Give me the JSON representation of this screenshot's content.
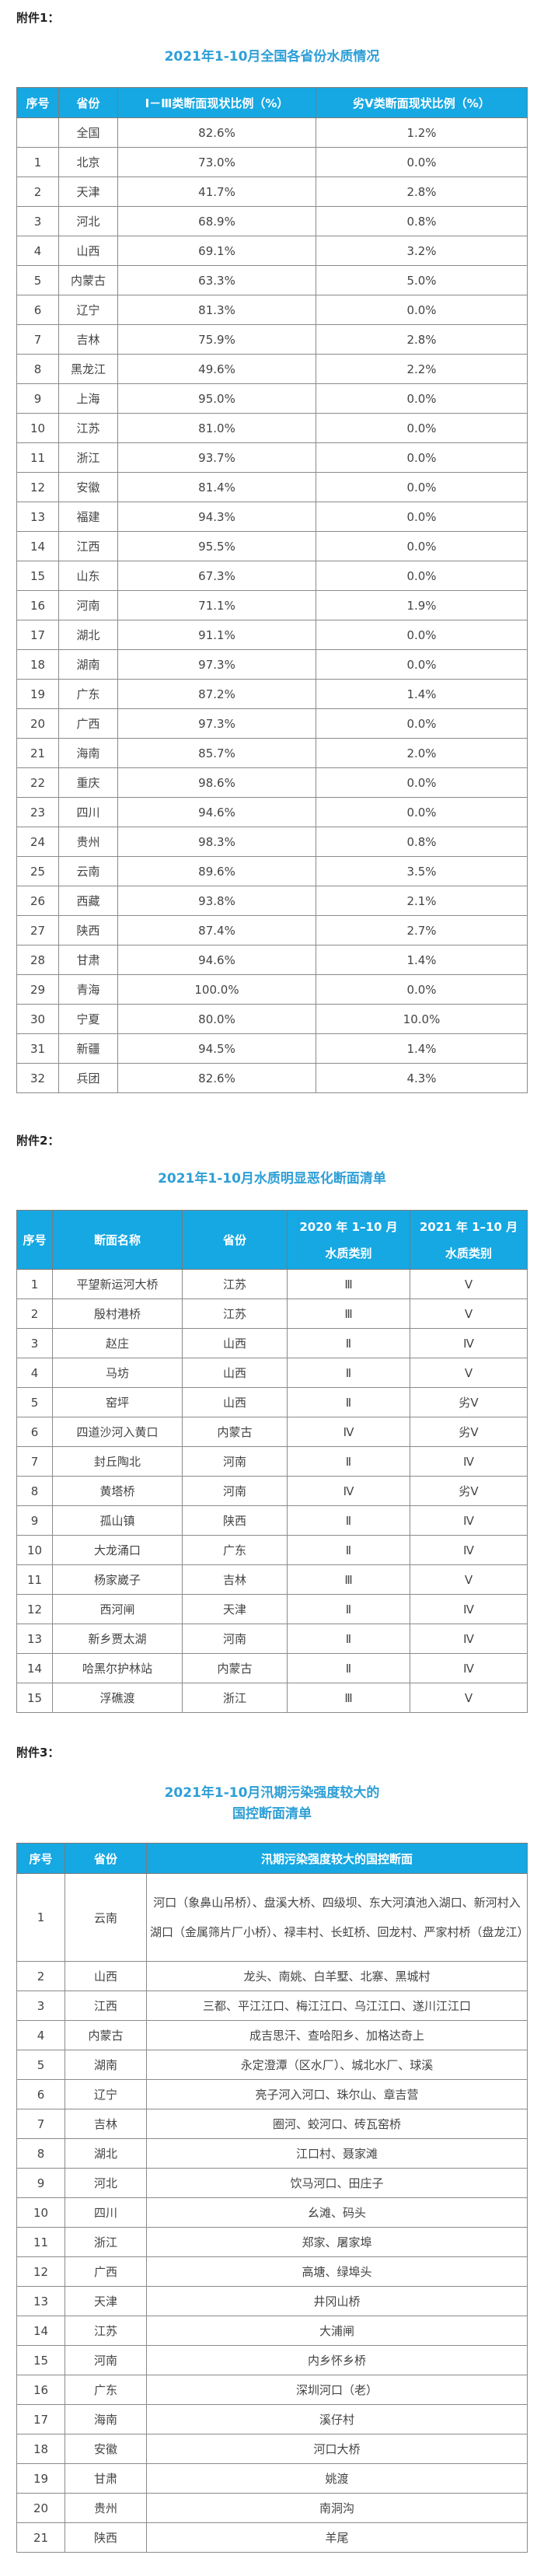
{
  "section1": {
    "label": "附件1：",
    "title": "2021年1-10月全国各省份水质情况",
    "headers": [
      "序号",
      "省份",
      "Ⅰ－Ⅲ类断面现状比例（%）",
      "劣Ⅴ类断面现状比例（%）"
    ],
    "rows": [
      [
        "",
        "全国",
        "82.6%",
        "1.2%"
      ],
      [
        "1",
        "北京",
        "73.0%",
        "0.0%"
      ],
      [
        "2",
        "天津",
        "41.7%",
        "2.8%"
      ],
      [
        "3",
        "河北",
        "68.9%",
        "0.8%"
      ],
      [
        "4",
        "山西",
        "69.1%",
        "3.2%"
      ],
      [
        "5",
        "内蒙古",
        "63.3%",
        "5.0%"
      ],
      [
        "6",
        "辽宁",
        "81.3%",
        "0.0%"
      ],
      [
        "7",
        "吉林",
        "75.9%",
        "2.8%"
      ],
      [
        "8",
        "黑龙江",
        "49.6%",
        "2.2%"
      ],
      [
        "9",
        "上海",
        "95.0%",
        "0.0%"
      ],
      [
        "10",
        "江苏",
        "81.0%",
        "0.0%"
      ],
      [
        "11",
        "浙江",
        "93.7%",
        "0.0%"
      ],
      [
        "12",
        "安徽",
        "81.4%",
        "0.0%"
      ],
      [
        "13",
        "福建",
        "94.3%",
        "0.0%"
      ],
      [
        "14",
        "江西",
        "95.5%",
        "0.0%"
      ],
      [
        "15",
        "山东",
        "67.3%",
        "0.0%"
      ],
      [
        "16",
        "河南",
        "71.1%",
        "1.9%"
      ],
      [
        "17",
        "湖北",
        "91.1%",
        "0.0%"
      ],
      [
        "18",
        "湖南",
        "97.3%",
        "0.0%"
      ],
      [
        "19",
        "广东",
        "87.2%",
        "1.4%"
      ],
      [
        "20",
        "广西",
        "97.3%",
        "0.0%"
      ],
      [
        "21",
        "海南",
        "85.7%",
        "2.0%"
      ],
      [
        "22",
        "重庆",
        "98.6%",
        "0.0%"
      ],
      [
        "23",
        "四川",
        "94.6%",
        "0.0%"
      ],
      [
        "24",
        "贵州",
        "98.3%",
        "0.8%"
      ],
      [
        "25",
        "云南",
        "89.6%",
        "3.5%"
      ],
      [
        "26",
        "西藏",
        "93.8%",
        "2.1%"
      ],
      [
        "27",
        "陕西",
        "87.4%",
        "2.7%"
      ],
      [
        "28",
        "甘肃",
        "94.6%",
        "1.4%"
      ],
      [
        "29",
        "青海",
        "100.0%",
        "0.0%"
      ],
      [
        "30",
        "宁夏",
        "80.0%",
        "10.0%"
      ],
      [
        "31",
        "新疆",
        "94.5%",
        "1.4%"
      ],
      [
        "32",
        "兵团",
        "82.6%",
        "4.3%"
      ]
    ]
  },
  "section2": {
    "label": "附件2：",
    "title": "2021年1-10月水质明显恶化断面清单",
    "headers": [
      "序号",
      "断面名称",
      "省份",
      "2020 年 1–10 月\n水质类别",
      "2021 年 1–10 月\n水质类别"
    ],
    "headers_split": {
      "h3_line1": "2020 年 1–10 月",
      "h3_line2": "水质类别",
      "h4_line1": "2021 年 1–10 月",
      "h4_line2": "水质类别"
    },
    "rows": [
      [
        "1",
        "平望新运河大桥",
        "江苏",
        "Ⅲ",
        "Ⅴ"
      ],
      [
        "2",
        "殷村港桥",
        "江苏",
        "Ⅲ",
        "Ⅴ"
      ],
      [
        "3",
        "赵庄",
        "山西",
        "Ⅱ",
        "Ⅳ"
      ],
      [
        "4",
        "马坊",
        "山西",
        "Ⅱ",
        "Ⅴ"
      ],
      [
        "5",
        "窑坪",
        "山西",
        "Ⅱ",
        "劣Ⅴ"
      ],
      [
        "6",
        "四道沙河入黄口",
        "内蒙古",
        "Ⅳ",
        "劣Ⅴ"
      ],
      [
        "7",
        "封丘陶北",
        "河南",
        "Ⅱ",
        "Ⅳ"
      ],
      [
        "8",
        "黄塔桥",
        "河南",
        "Ⅳ",
        "劣Ⅴ"
      ],
      [
        "9",
        "孤山镇",
        "陕西",
        "Ⅱ",
        "Ⅳ"
      ],
      [
        "10",
        "大龙涌口",
        "广东",
        "Ⅱ",
        "Ⅳ"
      ],
      [
        "11",
        "杨家崴子",
        "吉林",
        "Ⅲ",
        "Ⅴ"
      ],
      [
        "12",
        "西河闸",
        "天津",
        "Ⅱ",
        "Ⅳ"
      ],
      [
        "13",
        "新乡贾太湖",
        "河南",
        "Ⅱ",
        "Ⅳ"
      ],
      [
        "14",
        "哈黑尔护林站",
        "内蒙古",
        "Ⅱ",
        "Ⅳ"
      ],
      [
        "15",
        "浮礁渡",
        "浙江",
        "Ⅲ",
        "Ⅴ"
      ]
    ]
  },
  "section3": {
    "label": "附件3：",
    "title_line1": "2021年1-10月汛期污染强度较大的",
    "title_line2": "国控断面清单",
    "headers": [
      "序号",
      "省份",
      "汛期污染强度较大的国控断面"
    ],
    "rows": [
      [
        "1",
        "云南",
        "河口（象鼻山吊桥）、盘溪大桥、四级坝、东大河滇池入湖口、新河村入湖口（金属筛片厂小桥）、禄丰村、长虹桥、回龙村、严家村桥（盘龙江）"
      ],
      [
        "2",
        "山西",
        "龙头、南姚、白羊墅、北寨、黑城村"
      ],
      [
        "3",
        "江西",
        "三都、平江江口、梅江江口、乌江江口、遂川江江口"
      ],
      [
        "4",
        "内蒙古",
        "成吉思汗、查哈阳乡、加格达奇上"
      ],
      [
        "5",
        "湖南",
        "永定澄潭（区水厂）、城北水厂、球溪"
      ],
      [
        "6",
        "辽宁",
        "亮子河入河口、珠尔山、章吉营"
      ],
      [
        "7",
        "吉林",
        "圈河、蛟河口、砖瓦窑桥"
      ],
      [
        "8",
        "湖北",
        "江口村、聂家滩"
      ],
      [
        "9",
        "河北",
        "饮马河口、田庄子"
      ],
      [
        "10",
        "四川",
        "幺滩、码头"
      ],
      [
        "11",
        "浙江",
        "郑家、屠家埠"
      ],
      [
        "12",
        "广西",
        "高塘、绿埠头"
      ],
      [
        "13",
        "天津",
        "井冈山桥"
      ],
      [
        "14",
        "江苏",
        "大浦闸"
      ],
      [
        "15",
        "河南",
        "内乡怀乡桥"
      ],
      [
        "16",
        "广东",
        "深圳河口（老）"
      ],
      [
        "17",
        "海南",
        "溪仔村"
      ],
      [
        "18",
        "安徽",
        "河口大桥"
      ],
      [
        "19",
        "甘肃",
        "姚渡"
      ],
      [
        "20",
        "贵州",
        "南洞沟"
      ],
      [
        "21",
        "陕西",
        "羊尾"
      ]
    ]
  },
  "colors": {
    "header_bg": "#16a8e3",
    "title_color": "#2e9fd6"
  }
}
